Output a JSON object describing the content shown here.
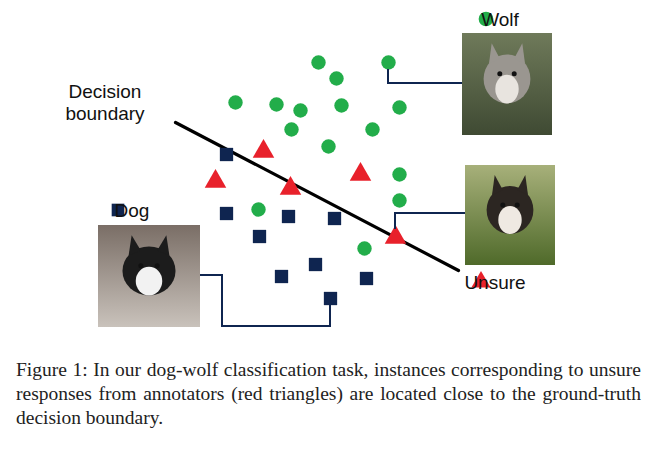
{
  "chart_data": {
    "type": "scatter",
    "xlim": [
      0,
      664
    ],
    "ylim": [
      0,
      340
    ],
    "tick_labels": false,
    "series": [
      {
        "name": "Wolf",
        "color": "#22ad4a",
        "marker": "circle",
        "x": [
          318,
          388,
          336,
          235,
          276,
          300,
          341,
          399,
          291,
          372,
          328,
          399,
          399,
          258,
          364
        ],
        "values": [
          278,
          278,
          262,
          238,
          236,
          230,
          235,
          233,
          211,
          211,
          194,
          166,
          140,
          131,
          92
        ]
      },
      {
        "name": "Dog",
        "color": "#0f2550",
        "marker": "square",
        "x": [
          226,
          226,
          288,
          334,
          259,
          315,
          281,
          366,
          330
        ],
        "values": [
          186,
          127,
          124,
          122,
          104,
          76,
          64,
          62,
          42
        ]
      },
      {
        "name": "Unsure",
        "color": "#e8212b",
        "marker": "triangle",
        "x": [
          263,
          215,
          290,
          360,
          395
        ],
        "values": [
          189,
          159,
          152,
          166,
          103
        ]
      },
      {
        "name": "Decision\nboundary",
        "type": "line",
        "color": "#000000",
        "x": [
          175,
          458
        ],
        "values": [
          218,
          70
        ]
      }
    ],
    "caption": "Figure 1: In our dog-wolf classification task, instances corresponding to unsure responses from annotators (red triangles) are located close to the ground-truth decision boundary."
  }
}
